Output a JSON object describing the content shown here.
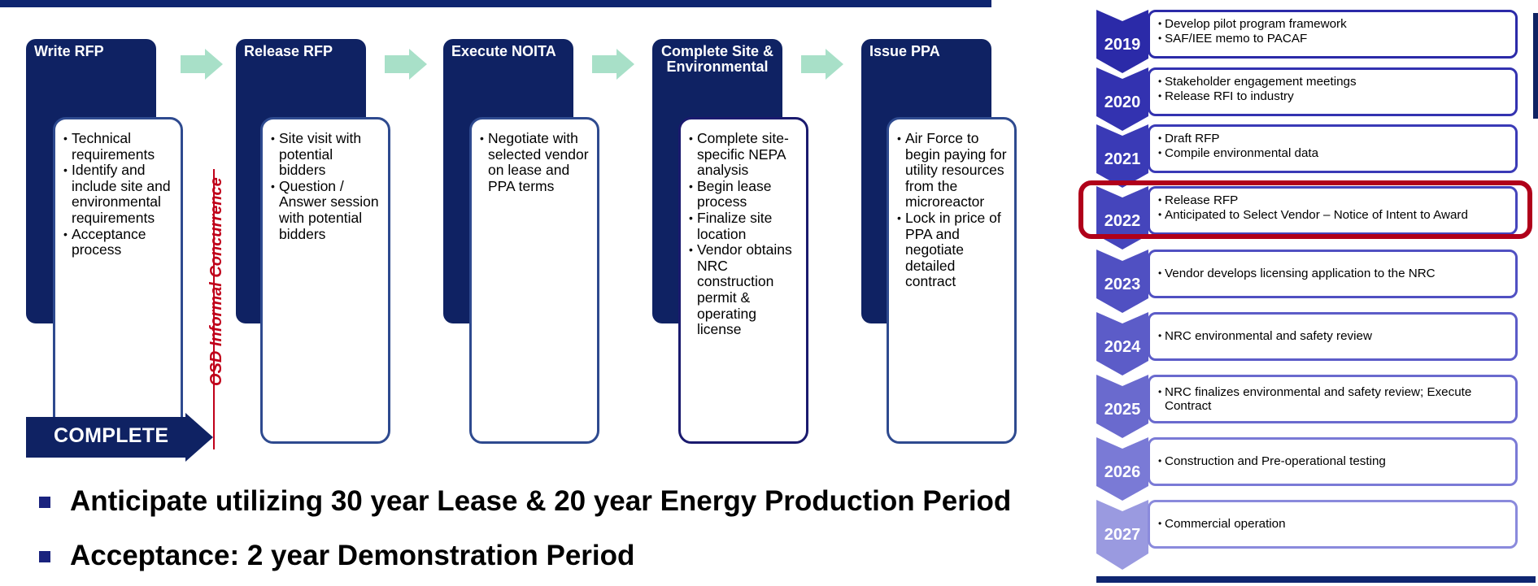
{
  "process": {
    "steps": [
      {
        "title": "Write RFP",
        "bullets": [
          "Technical requirements",
          "Identify and include site and environmental requirements",
          "Acceptance process"
        ]
      },
      {
        "title": "Release RFP",
        "bullets": [
          "Site visit with potential bidders",
          "Question / Answer session with potential bidders"
        ]
      },
      {
        "title": "Execute NOITA",
        "bullets": [
          "Negotiate with selected vendor on lease and PPA terms"
        ]
      },
      {
        "title": "Complete Site & Environmental",
        "bullets": [
          "Complete site-specific NEPA analysis",
          "Begin lease process",
          "Finalize site location",
          "Vendor obtains NRC construction permit & operating license"
        ]
      },
      {
        "title": "Issue PPA",
        "bullets": [
          "Air Force to begin paying for utility resources from the microreactor",
          "Lock in price of PPA and negotiate detailed contract"
        ]
      }
    ],
    "complete_label": "COMPLETE",
    "concurrence_label": "OSD Informal Concurrence"
  },
  "notes": [
    "Anticipate utilizing 30 year Lease & 20 year Energy Production Period",
    "Acceptance:  2 year Demonstration Period"
  ],
  "timeline": [
    {
      "year": "2019",
      "items": [
        "Develop pilot program framework",
        "SAF/IEE memo to PACAF"
      ]
    },
    {
      "year": "2020",
      "items": [
        "Stakeholder engagement meetings",
        "Release RFI to industry"
      ]
    },
    {
      "year": "2021",
      "items": [
        "Draft RFP",
        "Compile environmental data"
      ]
    },
    {
      "year": "2022",
      "items": [
        "Release RFP",
        "Anticipated to Select Vendor – Notice of Intent to Award"
      ],
      "highlighted": true
    },
    {
      "year": "2023",
      "items": [
        "Vendor develops licensing application to the NRC"
      ]
    },
    {
      "year": "2024",
      "items": [
        "NRC environmental and safety review"
      ]
    },
    {
      "year": "2025",
      "items": [
        "NRC finalizes environmental and safety review; Execute Contract"
      ]
    },
    {
      "year": "2026",
      "items": [
        "Construction and Pre-operational testing"
      ]
    },
    {
      "year": "2027",
      "items": [
        "Commercial operation"
      ]
    }
  ],
  "colors": {
    "navy": "#0f2263",
    "arrow_green": "#a8e0c8",
    "highlight_red": "#b0001a",
    "osd_red": "#c0001a"
  }
}
